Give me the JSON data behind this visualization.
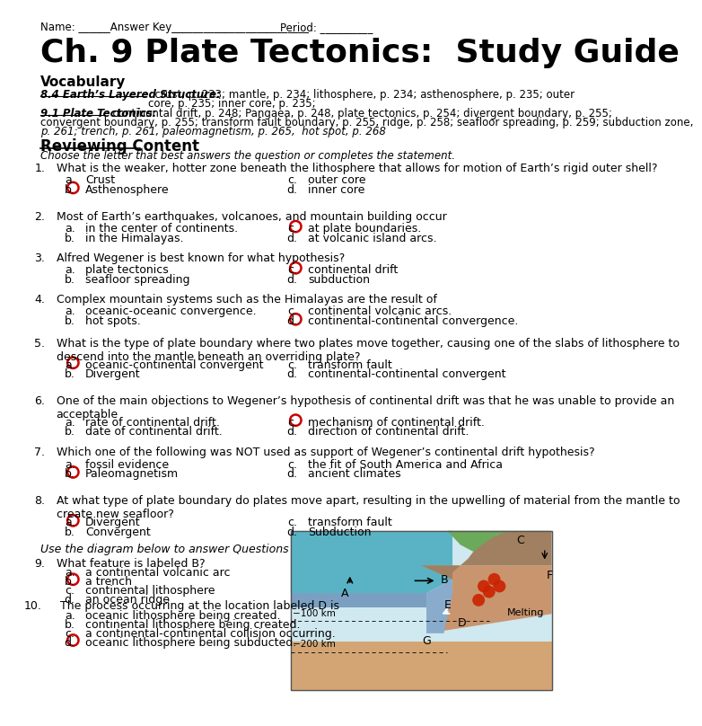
{
  "bg_color": "#ffffff",
  "title": "Ch. 9 Plate Tectonics:  Study Guide",
  "header_name": "Name: ______Answer Key__________________________",
  "header_period": "Period: __________",
  "vocab_header": "Vocabulary",
  "reviewing_header": "Reviewing Content",
  "reviewing_sub": "Choose the letter that best answers the question or completes the statement.",
  "questions": [
    {
      "num": "1.",
      "text": "What is the weaker, hotter zone beneath the lithosphere that allows for motion of Earth’s rigid outer shell?",
      "choices_left": [
        [
          "a.",
          "Crust"
        ],
        [
          "b.",
          "Asthenosphere"
        ]
      ],
      "choices_right": [
        [
          "c.",
          "outer core"
        ],
        [
          "d.",
          "inner core"
        ]
      ],
      "answer_letter": "b.",
      "answer_side": "left",
      "answer_row": 1
    },
    {
      "num": "2.",
      "text": "Most of Earth’s earthquakes, volcanoes, and mountain building occur",
      "choices_left": [
        [
          "a.",
          "in the center of continents."
        ],
        [
          "b.",
          "in the Himalayas."
        ]
      ],
      "choices_right": [
        [
          "c.",
          "at plate boundaries."
        ],
        [
          "d.",
          "at volcanic island arcs."
        ]
      ],
      "answer_letter": "c.",
      "answer_side": "right",
      "answer_row": 0
    },
    {
      "num": "3.",
      "text": "Alfred Wegener is best known for what hypothesis?",
      "choices_left": [
        [
          "a.",
          "plate tectonics"
        ],
        [
          "b.",
          "seafloor spreading"
        ]
      ],
      "choices_right": [
        [
          "c.",
          "continental drift"
        ],
        [
          "d.",
          "subduction"
        ]
      ],
      "answer_letter": "c.",
      "answer_side": "right",
      "answer_row": 0
    },
    {
      "num": "4.",
      "text": "Complex mountain systems such as the Himalayas are the result of",
      "choices_left": [
        [
          "a.",
          "oceanic-oceanic convergence."
        ],
        [
          "b.",
          "hot spots."
        ]
      ],
      "choices_right": [
        [
          "c.",
          "continental volcanic arcs."
        ],
        [
          "d.",
          "continental-continental convergence."
        ]
      ],
      "answer_letter": "d.",
      "answer_side": "right",
      "answer_row": 1
    },
    {
      "num": "5.",
      "text": "What is the type of plate boundary where two plates move together, causing one of the slabs of lithosphere to\ndescend into the mantle beneath an overriding plate?",
      "choices_left": [
        [
          "a.",
          "oceanic-continental convergent"
        ],
        [
          "b.",
          "Divergent"
        ]
      ],
      "choices_right": [
        [
          "c.",
          "transform fault"
        ],
        [
          "d.",
          "continental-continental convergent"
        ]
      ],
      "answer_letter": "a.",
      "answer_side": "left",
      "answer_row": 0
    },
    {
      "num": "6.",
      "text": "One of the main objections to Wegener’s hypothesis of continental drift was that he was unable to provide an\nacceptable",
      "choices_left": [
        [
          "a.",
          "rate of continental drift."
        ],
        [
          "b.",
          "date of continental drift."
        ]
      ],
      "choices_right": [
        [
          "c.",
          "mechanism of continental drift."
        ],
        [
          "d.",
          "direction of continental drift."
        ]
      ],
      "answer_letter": "c.",
      "answer_side": "right",
      "answer_row": 0
    },
    {
      "num": "7.",
      "text": "Which one of the following was NOT used as support of Wegener’s continental drift hypothesis?",
      "choices_left": [
        [
          "a.",
          "fossil evidence"
        ],
        [
          "b.",
          "Paleomagnetism"
        ]
      ],
      "choices_right": [
        [
          "c.",
          "the fit of South America and Africa"
        ],
        [
          "d.",
          "ancient climates"
        ]
      ],
      "answer_letter": "b.",
      "answer_side": "left",
      "answer_row": 1
    },
    {
      "num": "8.",
      "text": "At what type of plate boundary do plates move apart, resulting in the upwelling of material from the mantle to\ncreate new seafloor?",
      "choices_left": [
        [
          "a.",
          "Divergent"
        ],
        [
          "b.",
          "Convergent"
        ]
      ],
      "choices_right": [
        [
          "c.",
          "transform fault"
        ],
        [
          "d.",
          "Subduction"
        ]
      ],
      "answer_letter": "a.",
      "answer_side": "left",
      "answer_row": 0
    }
  ],
  "diagram_intro": "Use the diagram below to answer Questions",
  "q9": {
    "num": "9.",
    "text": "What feature is labeled B?",
    "choices": [
      [
        "a.",
        "a continental volcanic arc"
      ],
      [
        "b.",
        "a trench"
      ],
      [
        "c.",
        "continental lithosphere"
      ],
      [
        "d.",
        "an ocean ridge"
      ]
    ],
    "answer_letter": "b.",
    "answer_row": 1
  },
  "q10": {
    "num": "10.",
    "text": "The process occurring at the location labeled D is",
    "choices": [
      [
        "a.",
        "oceanic lithosphere being created."
      ],
      [
        "b.",
        "continental lithosphere being created."
      ],
      [
        "c.",
        "a continental-continental collision occurring."
      ],
      [
        "d.",
        "oceanic lithosphere being subducted."
      ]
    ],
    "answer_letter": "d.",
    "answer_row": 3
  },
  "circle_color": "#cc0000",
  "text_color": "#000000"
}
